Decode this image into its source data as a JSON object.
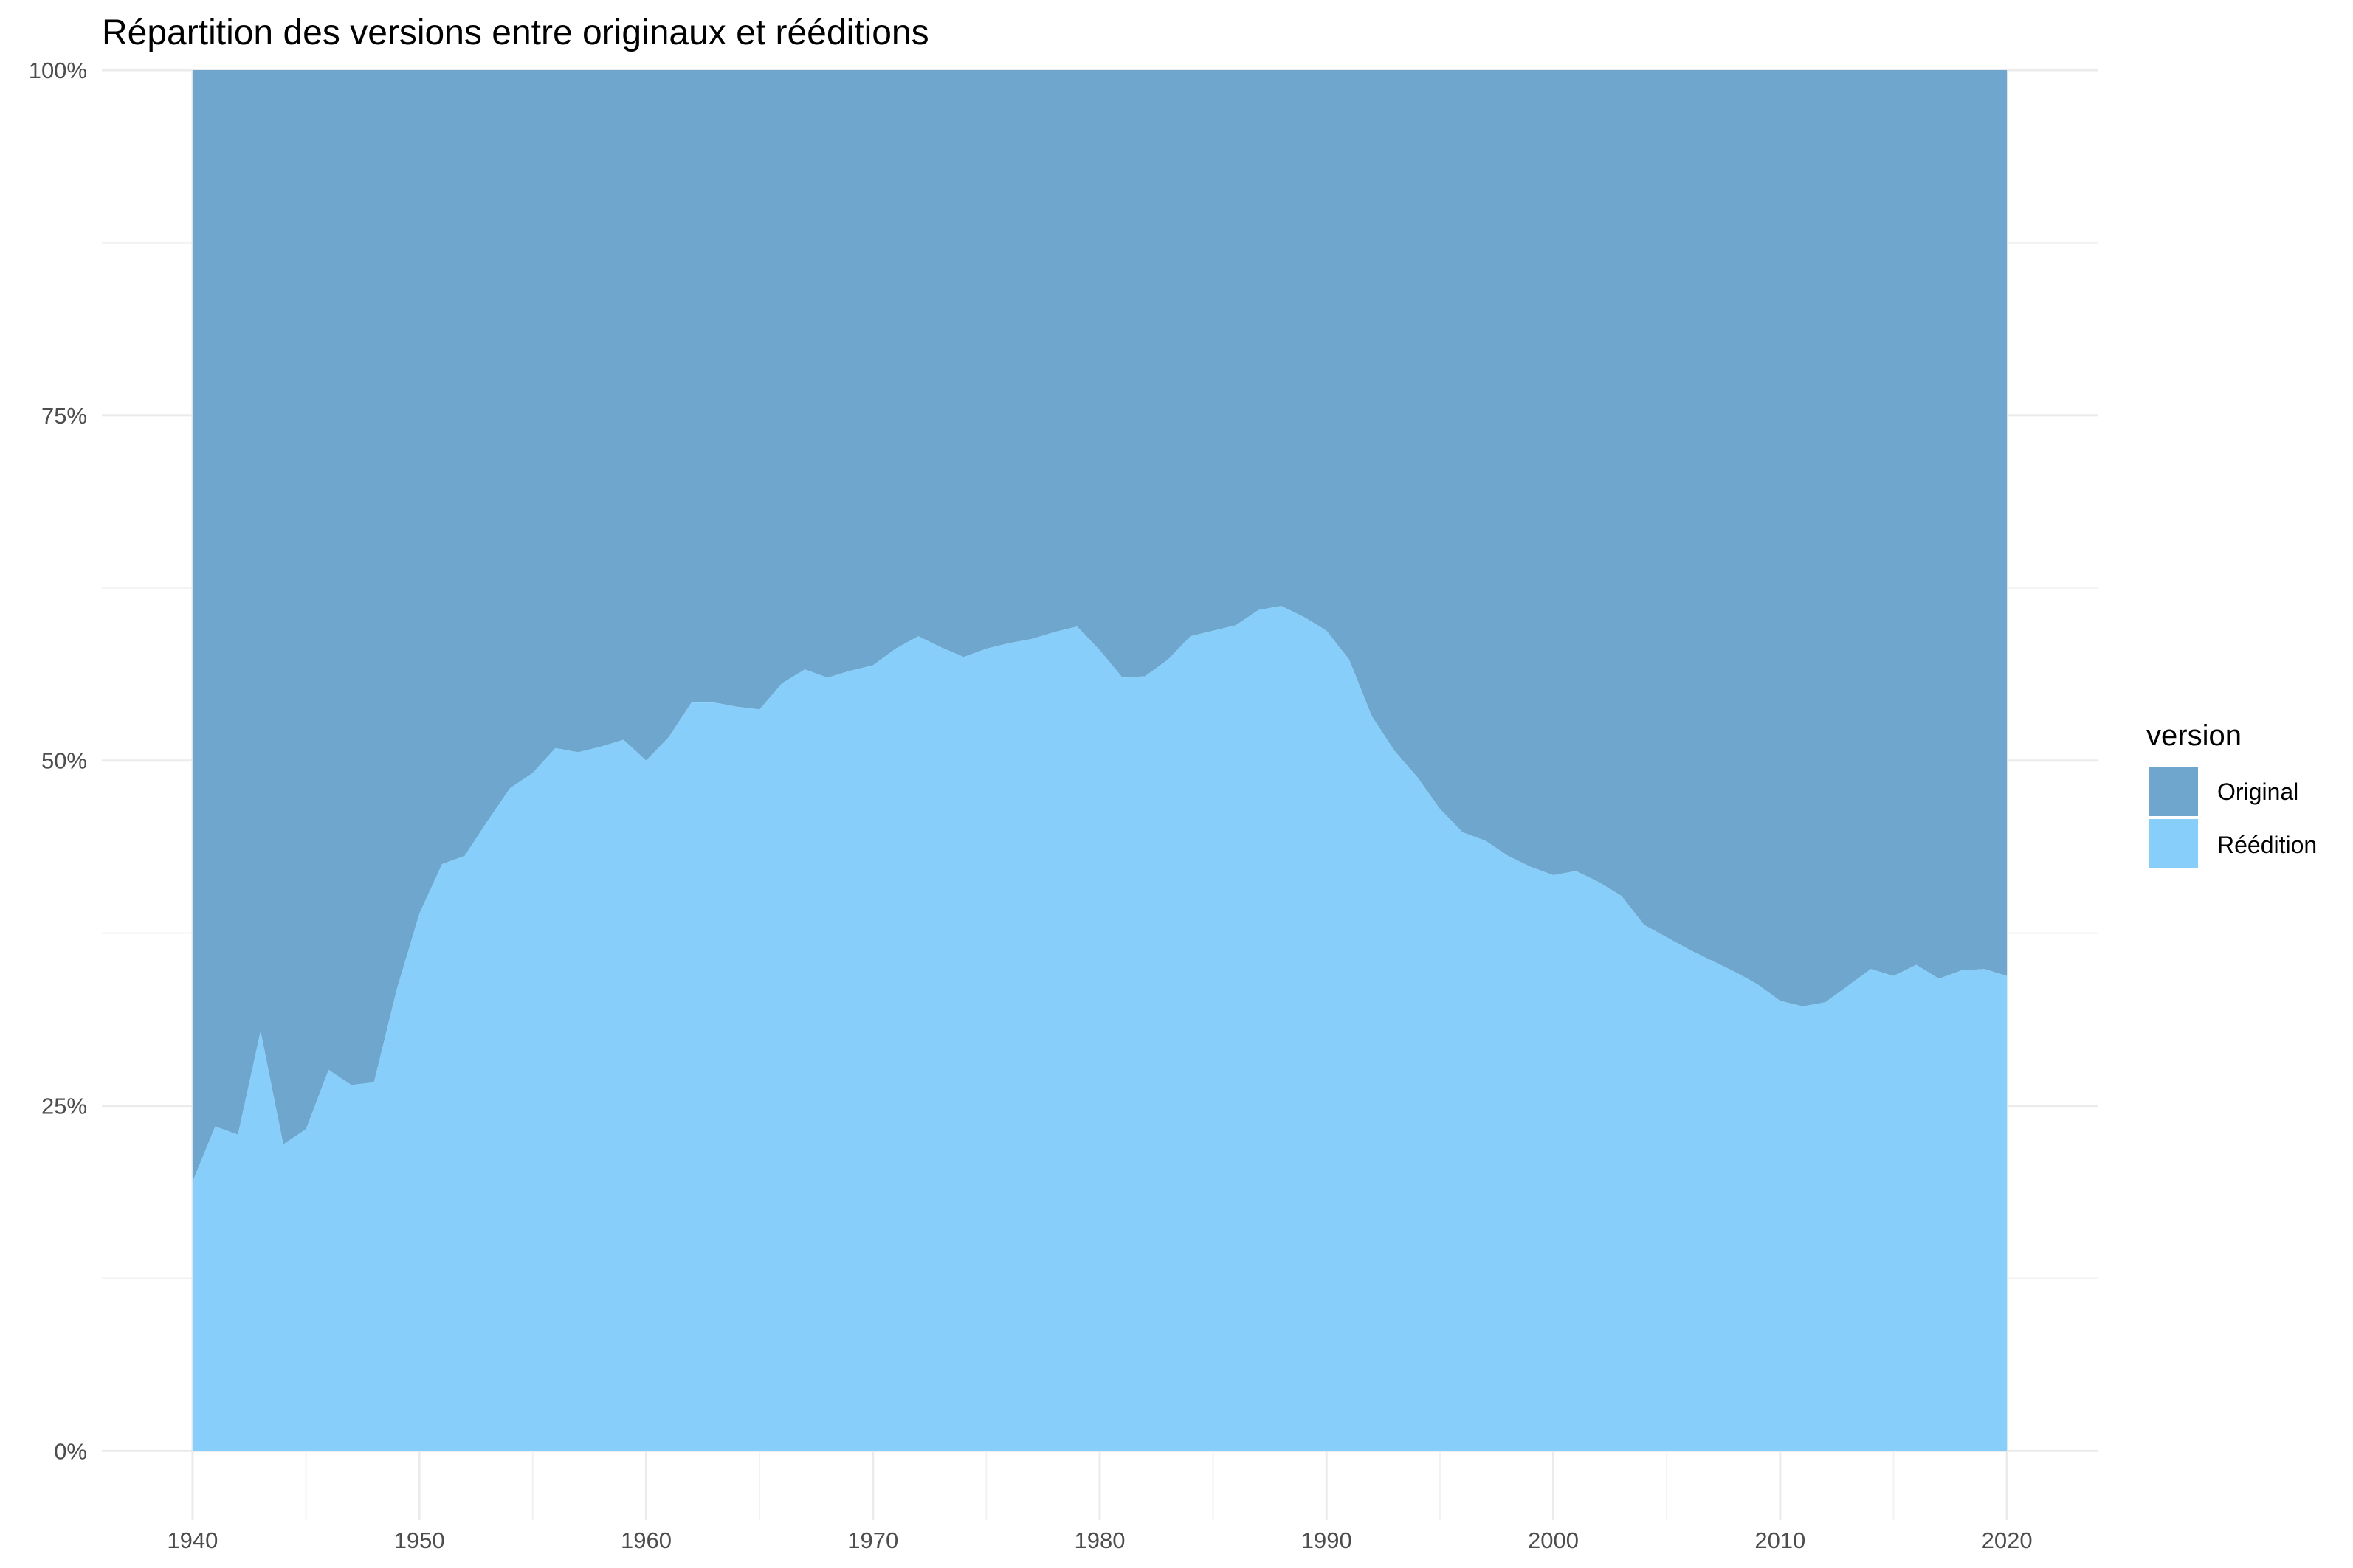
{
  "chart_data": {
    "type": "area",
    "stacked": "percent",
    "title": "Répartition des versions entre originaux et rééditions",
    "xlabel": "",
    "ylabel": "",
    "xlim": [
      1936,
      2024
    ],
    "ylim": [
      -0.05,
      1.0
    ],
    "x_ticks": [
      1940,
      1950,
      1960,
      1970,
      1980,
      1990,
      2000,
      2010,
      2020
    ],
    "x_tick_labels": [
      "1940",
      "1950",
      "1960",
      "1970",
      "1980",
      "1990",
      "2000",
      "2010",
      "2020"
    ],
    "y_ticks": [
      0,
      0.25,
      0.5,
      0.75,
      1.0
    ],
    "y_tick_labels": [
      "0%",
      "25%",
      "50%",
      "75%",
      "100%"
    ],
    "grid": true,
    "legend": {
      "title": "version",
      "position": "right"
    },
    "x": [
      1940,
      1941,
      1942,
      1943,
      1944,
      1945,
      1946,
      1947,
      1948,
      1949,
      1950,
      1951,
      1952,
      1953,
      1954,
      1955,
      1956,
      1957,
      1958,
      1959,
      1960,
      1961,
      1962,
      1963,
      1964,
      1965,
      1966,
      1967,
      1968,
      1969,
      1970,
      1971,
      1972,
      1973,
      1974,
      1975,
      1976,
      1977,
      1978,
      1979,
      1980,
      1981,
      1982,
      1983,
      1984,
      1985,
      1986,
      1987,
      1988,
      1989,
      1990,
      1991,
      1992,
      1993,
      1994,
      1995,
      1996,
      1997,
      1998,
      1999,
      2000,
      2001,
      2002,
      2003,
      2004,
      2005,
      2006,
      2007,
      2008,
      2009,
      2010,
      2011,
      2012,
      2013,
      2014,
      2015,
      2016,
      2017,
      2018,
      2019,
      2020
    ],
    "series": [
      {
        "name": "Original",
        "color": "#6ea6cd",
        "values": [
          0.805,
          0.765,
          0.771,
          0.696,
          0.778,
          0.767,
          0.724,
          0.735,
          0.733,
          0.666,
          0.611,
          0.575,
          0.569,
          0.544,
          0.52,
          0.509,
          0.491,
          0.494,
          0.49,
          0.485,
          0.5,
          0.483,
          0.458,
          0.458,
          0.461,
          0.463,
          0.444,
          0.434,
          0.44,
          0.435,
          0.431,
          0.419,
          0.41,
          0.418,
          0.425,
          0.419,
          0.415,
          0.412,
          0.407,
          0.403,
          0.42,
          0.44,
          0.439,
          0.427,
          0.41,
          0.406,
          0.402,
          0.391,
          0.388,
          0.396,
          0.406,
          0.427,
          0.468,
          0.493,
          0.512,
          0.535,
          0.552,
          0.558,
          0.569,
          0.577,
          0.583,
          0.58,
          0.588,
          0.598,
          0.619,
          0.628,
          0.637,
          0.645,
          0.653,
          0.662,
          0.674,
          0.678,
          0.675,
          0.663,
          0.651,
          0.656,
          0.648,
          0.658,
          0.652,
          0.651,
          0.656
        ]
      },
      {
        "name": "Réédition",
        "color": "#87cefa",
        "values": [
          0.195,
          0.235,
          0.229,
          0.304,
          0.222,
          0.233,
          0.276,
          0.265,
          0.267,
          0.334,
          0.389,
          0.425,
          0.431,
          0.456,
          0.48,
          0.491,
          0.509,
          0.506,
          0.51,
          0.515,
          0.5,
          0.517,
          0.542,
          0.542,
          0.539,
          0.537,
          0.556,
          0.566,
          0.56,
          0.565,
          0.569,
          0.581,
          0.59,
          0.582,
          0.575,
          0.581,
          0.585,
          0.588,
          0.593,
          0.597,
          0.58,
          0.56,
          0.561,
          0.573,
          0.59,
          0.594,
          0.598,
          0.609,
          0.612,
          0.604,
          0.594,
          0.573,
          0.532,
          0.507,
          0.488,
          0.465,
          0.448,
          0.442,
          0.431,
          0.423,
          0.417,
          0.42,
          0.412,
          0.402,
          0.381,
          0.372,
          0.363,
          0.355,
          0.347,
          0.338,
          0.326,
          0.322,
          0.325,
          0.337,
          0.349,
          0.344,
          0.352,
          0.342,
          0.348,
          0.349,
          0.344
        ]
      }
    ]
  }
}
